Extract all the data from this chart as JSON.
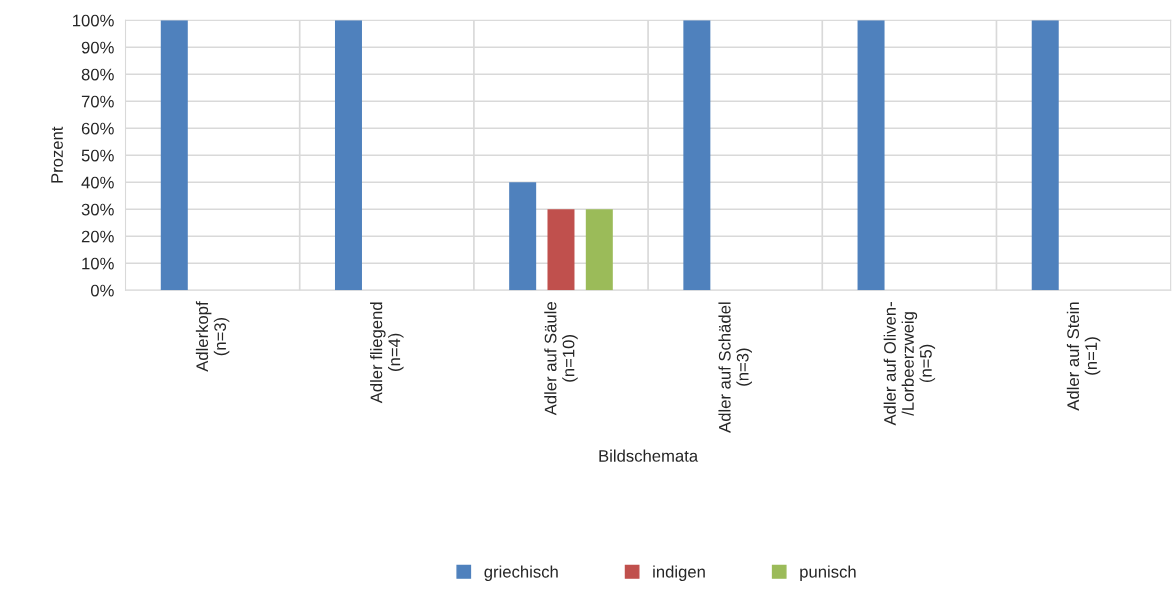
{
  "chart_data": {
    "type": "bar",
    "xlabel": "Bildschemata",
    "ylabel": "Prozent",
    "categories": [
      "Adlerkopf\n(n=3)",
      "Adler fliegend\n(n=4)",
      "Adler auf Säule\n(n=10)",
      "Adler auf Schädel\n(n=3)",
      "Adler auf Oliven-\n/Lorbeerzweig\n(n=5)",
      "Adler auf Stein\n(n=1)"
    ],
    "series": [
      {
        "name": "griechisch",
        "color": "#4f81bd",
        "values": [
          100,
          100,
          40,
          100,
          100,
          100
        ]
      },
      {
        "name": "indigen",
        "color": "#c0504d",
        "values": [
          0,
          0,
          30,
          0,
          0,
          0
        ]
      },
      {
        "name": "punisch",
        "color": "#9bbb59",
        "values": [
          0,
          0,
          30,
          0,
          0,
          0
        ]
      }
    ],
    "ylim": [
      0,
      100
    ],
    "yticks": [
      {
        "value": 0,
        "label": "0%"
      },
      {
        "value": 10,
        "label": "10%"
      },
      {
        "value": 20,
        "label": "20%"
      },
      {
        "value": 30,
        "label": "30%"
      },
      {
        "value": 40,
        "label": "40%"
      },
      {
        "value": 50,
        "label": "50%"
      },
      {
        "value": 60,
        "label": "60%"
      },
      {
        "value": 70,
        "label": "70%"
      },
      {
        "value": 80,
        "label": "80%"
      },
      {
        "value": 90,
        "label": "90%"
      },
      {
        "value": 100,
        "label": "100%"
      }
    ],
    "grid": true,
    "legend": "bottom"
  }
}
